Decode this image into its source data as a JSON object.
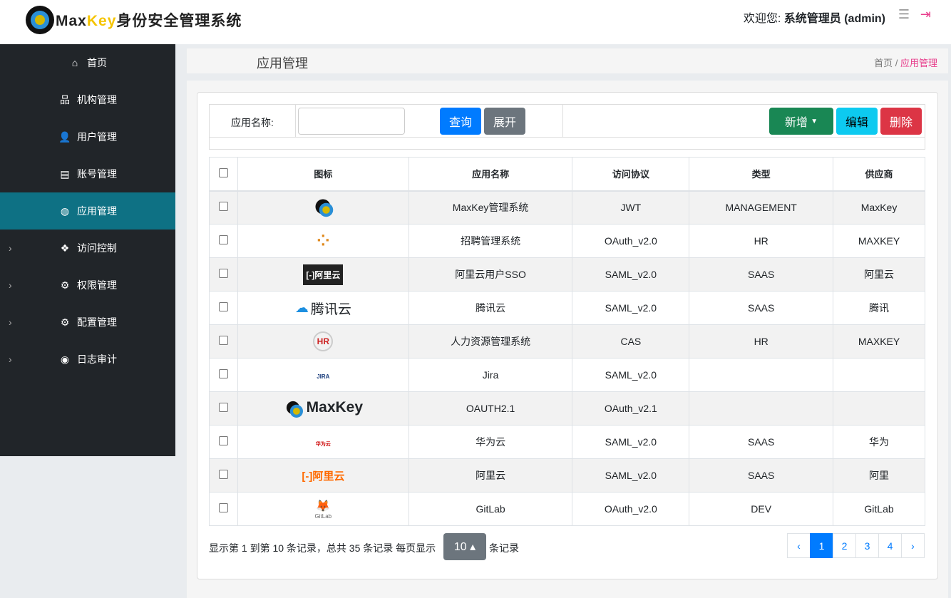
{
  "header": {
    "logo_text": "MaxKey身份安全管理系统",
    "welcome": "欢迎您:",
    "user": "系统管理员 (admin)"
  },
  "sidebar": {
    "items": [
      {
        "label": "首页",
        "icon": "home-icon",
        "glyph": "⌂",
        "expand": false,
        "active": false
      },
      {
        "label": "机构管理",
        "icon": "sitemap-icon",
        "glyph": "品",
        "expand": false,
        "active": false
      },
      {
        "label": "用户管理",
        "icon": "user-icon",
        "glyph": "👤",
        "expand": false,
        "active": false
      },
      {
        "label": "账号管理",
        "icon": "id-card-icon",
        "glyph": "▤",
        "expand": false,
        "active": false
      },
      {
        "label": "应用管理",
        "icon": "globe-icon",
        "glyph": "◍",
        "expand": false,
        "active": true
      },
      {
        "label": "访问控制",
        "icon": "cubes-icon",
        "glyph": "❖",
        "expand": true,
        "active": false
      },
      {
        "label": "权限管理",
        "icon": "cogs-icon",
        "glyph": "⚙",
        "expand": true,
        "active": false
      },
      {
        "label": "配置管理",
        "icon": "cogs-icon",
        "glyph": "⚙",
        "expand": true,
        "active": false
      },
      {
        "label": "日志审计",
        "icon": "eye-icon",
        "glyph": "◉",
        "expand": true,
        "active": false
      }
    ]
  },
  "page": {
    "title": "应用管理",
    "breadcrumb": {
      "home": "首页",
      "sep": " / ",
      "current": "应用管理"
    }
  },
  "search": {
    "label": "应用名称:",
    "value": "",
    "query": "查询",
    "expand": "展开",
    "add": "新增",
    "edit": "编辑",
    "delete": "删除"
  },
  "colors": {
    "primary": "#007bff",
    "success": "#198754",
    "info": "#0dcaf0",
    "danger": "#dc3545",
    "sidebar": "#212529",
    "active": "#0e7184"
  },
  "table": {
    "headers": [
      "图标",
      "应用名称",
      "访问协议",
      "类型",
      "供应商"
    ],
    "rows": [
      {
        "icon": "maxkey-logo",
        "name": "MaxKey管理系统",
        "protocol": "JWT",
        "type": "MANAGEMENT",
        "vendor": "MaxKey"
      },
      {
        "icon": "loading-dots-logo",
        "name": "招聘管理系统",
        "protocol": "OAuth_v2.0",
        "type": "HR",
        "vendor": "MAXKEY"
      },
      {
        "icon": "aliyun-dark-logo",
        "icon_text": "[-]阿里云",
        "name": "阿里云用户SSO",
        "protocol": "SAML_v2.0",
        "type": "SAAS",
        "vendor": "阿里云"
      },
      {
        "icon": "tencent-cloud-logo",
        "icon_text": "腾讯云",
        "name": "腾讯云",
        "protocol": "SAML_v2.0",
        "type": "SAAS",
        "vendor": "腾讯"
      },
      {
        "icon": "hr-logo",
        "icon_text": "HR",
        "name": "人力资源管理系统",
        "protocol": "CAS",
        "type": "HR",
        "vendor": "MAXKEY"
      },
      {
        "icon": "jira-logo",
        "icon_text": "JIRA",
        "name": "Jira",
        "protocol": "SAML_v2.0",
        "type": "",
        "vendor": ""
      },
      {
        "icon": "maxkey-wide-logo",
        "icon_text": "MaxKey",
        "name": "OAUTH2.1",
        "protocol": "OAuth_v2.1",
        "type": "",
        "vendor": ""
      },
      {
        "icon": "huawei-logo",
        "icon_text": "华为云",
        "name": "华为云",
        "protocol": "SAML_v2.0",
        "type": "SAAS",
        "vendor": "华为"
      },
      {
        "icon": "aliyun-orange-logo",
        "icon_text": "[-]阿里云",
        "name": "阿里云",
        "protocol": "SAML_v2.0",
        "type": "SAAS",
        "vendor": "阿里"
      },
      {
        "icon": "gitlab-logo",
        "icon_text": "GitLab",
        "name": "GitLab",
        "protocol": "OAuth_v2.0",
        "type": "DEV",
        "vendor": "GitLab"
      }
    ]
  },
  "footer": {
    "summary": "显示第 1 到第 10 条记录，总共 35 条记录  每页显示",
    "page_size": "10 ▴",
    "suffix": "条记录"
  },
  "pager": {
    "prev": "‹",
    "pages": [
      "1",
      "2",
      "3",
      "4"
    ],
    "current": "1",
    "next": "›"
  }
}
